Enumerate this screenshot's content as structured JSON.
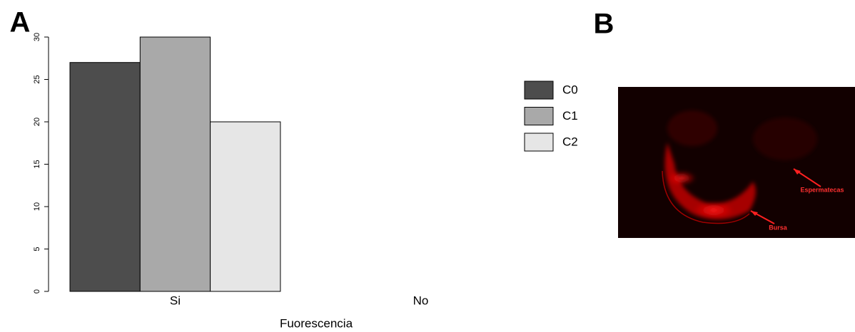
{
  "panel_labels": [
    "A",
    "B"
  ],
  "chart_data": {
    "type": "bar",
    "categories": [
      "Si",
      "No"
    ],
    "series": [
      {
        "name": "C0",
        "color": "#4d4d4d",
        "values": [
          27,
          0
        ]
      },
      {
        "name": "C1",
        "color": "#a9a9a9",
        "values": [
          30,
          0
        ]
      },
      {
        "name": "C2",
        "color": "#e6e6e6",
        "values": [
          20,
          0
        ]
      }
    ],
    "x_label": "Fuorescencia",
    "ylim": [
      0,
      30
    ],
    "yticks": [
      0,
      5,
      10,
      15,
      20,
      25,
      30
    ]
  },
  "image_annotations": [
    "Espermatecas",
    "Bursa"
  ]
}
